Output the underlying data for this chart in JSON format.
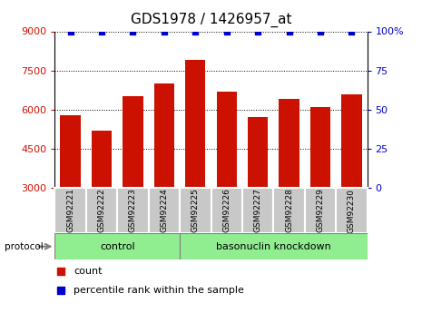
{
  "title": "GDS1978 / 1426957_at",
  "samples": [
    "GSM92221",
    "GSM92222",
    "GSM92223",
    "GSM92224",
    "GSM92225",
    "GSM92226",
    "GSM92227",
    "GSM92228",
    "GSM92229",
    "GSM92230"
  ],
  "counts": [
    5800,
    5200,
    6500,
    7000,
    7900,
    6700,
    5700,
    6400,
    6100,
    6600
  ],
  "percentile_ranks": [
    100,
    100,
    100,
    100,
    100,
    100,
    100,
    100,
    100,
    100
  ],
  "ylim_left": [
    3000,
    9000
  ],
  "yticks_left": [
    3000,
    4500,
    6000,
    7500,
    9000
  ],
  "ylim_right": [
    0,
    100
  ],
  "yticks_right": [
    0,
    25,
    50,
    75,
    100
  ],
  "bar_color": "#cc1100",
  "dot_color": "#0000cc",
  "bar_bottom": 3000,
  "control_indices": [
    0,
    1,
    2,
    3
  ],
  "knockdown_indices": [
    4,
    5,
    6,
    7,
    8,
    9
  ],
  "control_label": "control",
  "knockdown_label": "basonuclin knockdown",
  "protocol_label": "protocol",
  "group_bg_color": "#90ee90",
  "xlabel_bg_color": "#c8c8c8",
  "legend_count_label": "count",
  "legend_pct_label": "percentile rank within the sample",
  "title_fontsize": 11,
  "axis_label_color_left": "#cc1100",
  "axis_label_color_right": "#0000cc",
  "fig_width": 4.65,
  "fig_height": 3.45,
  "dpi": 100
}
